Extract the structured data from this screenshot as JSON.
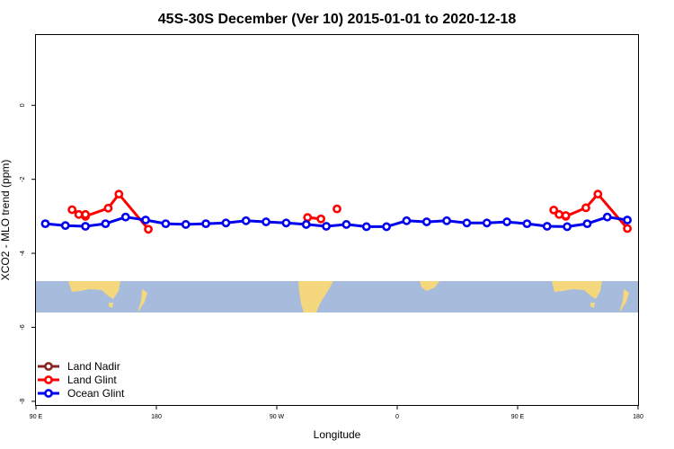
{
  "chart_data": {
    "type": "line",
    "title": "45S-30S December (Ver 10)   2015-01-01 to 2020-12-18",
    "xlabel": "Longitude",
    "ylabel": "XCO2 - MLO trend (ppm)",
    "xlim": [
      90,
      540
    ],
    "ylim": [
      -8.1,
      1.9
    ],
    "x_ticks": [
      {
        "value": 90,
        "label": "90 E"
      },
      {
        "value": 180,
        "label": "180"
      },
      {
        "value": 270,
        "label": "90 W"
      },
      {
        "value": 360,
        "label": "0"
      },
      {
        "value": 450,
        "label": "90 E"
      },
      {
        "value": 540,
        "label": "180"
      }
    ],
    "y_ticks": [
      {
        "value": 0,
        "label": "0"
      },
      {
        "value": -2,
        "label": "-2"
      },
      {
        "value": -4,
        "label": "-4"
      },
      {
        "value": -6,
        "label": "-6"
      },
      {
        "value": -8,
        "label": "-8"
      }
    ],
    "grid": false,
    "legend_position": "bottom-left",
    "series": [
      {
        "name": "Land Nadir",
        "color": "#8B2323",
        "segments": []
      },
      {
        "name": "Land Glint",
        "color": "#FF0000",
        "segments": [
          [
            [
              117,
              -2.82
            ],
            [
              127,
              -3.0
            ],
            [
              144,
              -2.78
            ],
            [
              152,
              -2.4
            ],
            [
              174,
              -3.35
            ]
          ],
          [
            [
              122,
              -2.95
            ],
            [
              127,
              -2.95
            ]
          ],
          [
            [
              293,
              -3.03
            ],
            [
              303,
              -3.07
            ]
          ],
          [
            [
              315,
              -2.8
            ]
          ],
          [
            [
              477,
              -2.83
            ],
            [
              486,
              -3.0
            ],
            [
              501,
              -2.77
            ],
            [
              510,
              -2.4
            ],
            [
              532,
              -3.33
            ]
          ],
          [
            [
              481,
              -2.95
            ],
            [
              486,
              -2.98
            ]
          ]
        ]
      },
      {
        "name": "Ocean Glint",
        "color": "#0000EE",
        "segments": [
          [
            [
              97,
              -3.2
            ],
            [
              112,
              -3.25
            ],
            [
              127,
              -3.27
            ],
            [
              142,
              -3.2
            ],
            [
              157,
              -3.02
            ],
            [
              172,
              -3.1
            ],
            [
              187,
              -3.2
            ],
            [
              202,
              -3.22
            ],
            [
              217,
              -3.2
            ],
            [
              232,
              -3.18
            ],
            [
              247,
              -3.12
            ],
            [
              262,
              -3.15
            ],
            [
              277,
              -3.18
            ],
            [
              292,
              -3.22
            ],
            [
              307,
              -3.27
            ],
            [
              322,
              -3.22
            ],
            [
              337,
              -3.28
            ],
            [
              352,
              -3.28
            ],
            [
              367,
              -3.12
            ],
            [
              382,
              -3.15
            ],
            [
              397,
              -3.12
            ],
            [
              412,
              -3.18
            ],
            [
              427,
              -3.18
            ],
            [
              442,
              -3.15
            ],
            [
              457,
              -3.2
            ],
            [
              472,
              -3.27
            ],
            [
              487,
              -3.28
            ],
            [
              502,
              -3.2
            ],
            [
              517,
              -3.02
            ],
            [
              532,
              -3.1
            ]
          ]
        ]
      }
    ],
    "map_band": {
      "lat_range": "45S-30S",
      "ocean_color": "#A7BCDD",
      "land_color": "#F5D77D"
    }
  }
}
